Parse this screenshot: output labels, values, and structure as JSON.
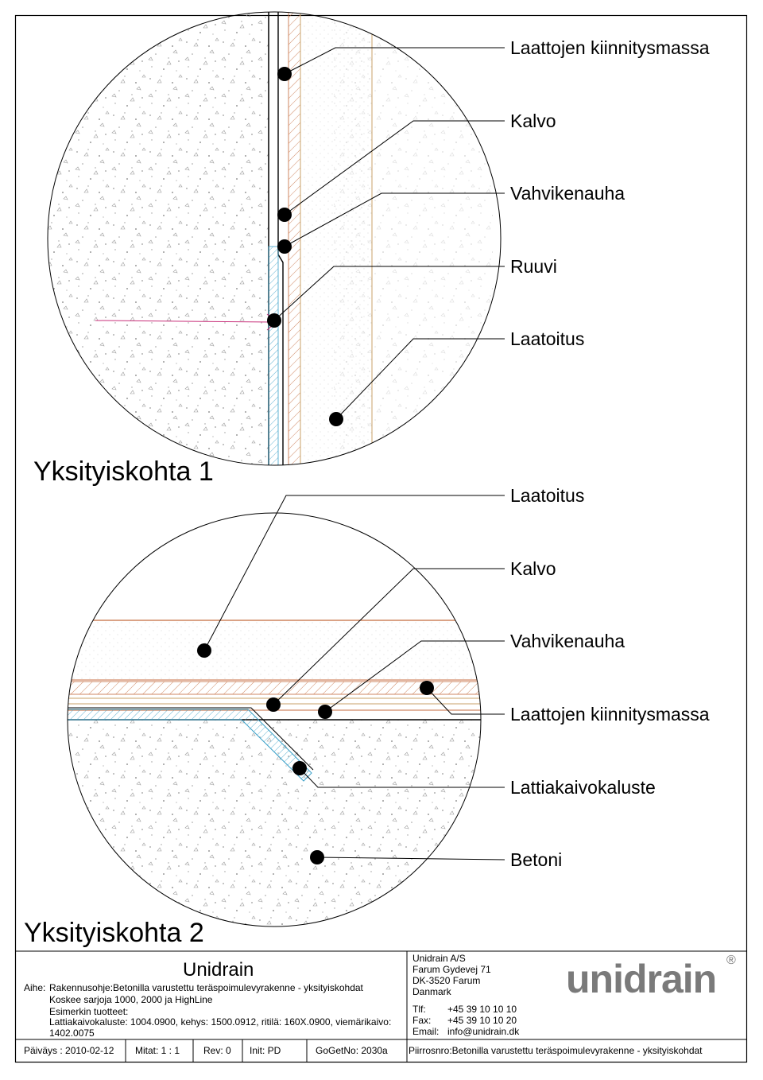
{
  "detail1": {
    "title": "Yksityiskohta 1",
    "labels": [
      "Laattojen kiinnitysmassa",
      "Kalvo",
      "Vahvikenauha",
      "Ruuvi",
      "Laatoitus"
    ]
  },
  "detail2": {
    "title": "Yksityiskohta 2",
    "labels": [
      "Laatoitus",
      "Kalvo",
      "Vahvikenauha",
      "Laattojen kiinnitysmassa",
      "Lattiakaivokaluste",
      "Betoni"
    ]
  },
  "title_block": {
    "company": "Unidrain",
    "aihe_label": "Aihe:",
    "aihe_value": "Rakennusohje:Betonilla varustettu teräspoimulevyrakenne - yksityiskohdat",
    "koskee": "Koskee sarjoja 1000, 2000 ja HighLine",
    "esimerkin": "Esimerkin tuotteet:",
    "products_1": "Lattiakaivokaluste: 1004.0900, kehys: 1500.0912, ritilä: 160X.0900, viemärikaivo:",
    "products_2": "1402.0075",
    "address": {
      "name": "Unidrain A/S",
      "street": "Farum Gydevej 71",
      "city": "DK-3520 Farum",
      "country": "Danmark",
      "tlf_label": "Tlf:",
      "tlf": "+45 39 10 10 10",
      "fax_label": "Fax:",
      "fax": "+45 39 10 10 20",
      "email_label": "Email:",
      "email": "info@unidrain.dk"
    },
    "logo_text": "unidrain",
    "logo_mark": "®",
    "paivays": "Päiväys : 2010-02-12",
    "mitat": "Mitat:  1 : 1",
    "rev": "Rev:  0",
    "init": "Init:  PD",
    "gogetno": "GoGetNo:  2030a",
    "piirrosnro": "Piirrosnro:Betonilla varustettu teräspoimulevyrakenne - yksityiskohdat"
  },
  "colors": {
    "outline": "#000000",
    "tile_line": "#c8a26a",
    "hatch": "#c46a3c",
    "membrane": "#3aa0c8",
    "screw": "#c8307a",
    "speckle": "#9a9a9a"
  }
}
